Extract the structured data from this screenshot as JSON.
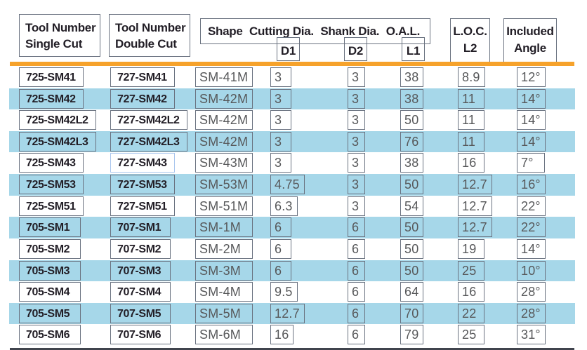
{
  "colors": {
    "stripe": "#a6d7e9",
    "header_rule_orange": "#f6a22b",
    "box_border": "#6a7280",
    "header_text": "#221e26",
    "value_text": "#57585a",
    "bottom_rule": "#40444d",
    "highlight_border": "#a9c6ee"
  },
  "header": {
    "tool_single": [
      "Tool Number",
      "Single Cut"
    ],
    "tool_double": [
      "Tool Number",
      "Double Cut"
    ],
    "shape": "Shape",
    "cutting_dia": "Cutting Dia.",
    "shank_dia": "Shank Dia.",
    "oal": "O.A.L.",
    "d1": "D1",
    "d2": "D2",
    "l1": "L1",
    "loc": [
      "L.O.C.",
      "L2"
    ],
    "included": [
      "Included",
      "Angle"
    ]
  },
  "rows": [
    {
      "single": "725-SM41",
      "double": "727-SM41",
      "shape": "SM-41M",
      "d1": "3",
      "d2": "3",
      "l1": "38",
      "l2": "8.9",
      "angle": "12°"
    },
    {
      "single": "725-SM42",
      "double": "727-SM42",
      "shape": "SM-42M",
      "d1": "3",
      "d2": "3",
      "l1": "38",
      "l2": "11",
      "angle": "14°"
    },
    {
      "single": "725-SM42L2",
      "double": "727-SM42L2",
      "shape": "SM-42M",
      "d1": "3",
      "d2": "3",
      "l1": "50",
      "l2": "11",
      "angle": "14°"
    },
    {
      "single": "725-SM42L3",
      "double": "727-SM42L3",
      "shape": "SM-42M",
      "d1": "3",
      "d2": "3",
      "l1": "76",
      "l2": "11",
      "angle": "14°"
    },
    {
      "single": "725-SM43",
      "double": "727-SM43",
      "shape": "SM-43M",
      "d1": "3",
      "d2": "3",
      "l1": "38",
      "l2": "16",
      "angle": "7°"
    },
    {
      "single": "725-SM53",
      "double": "727-SM53",
      "shape": "SM-53M",
      "d1": "4.75",
      "d2": "3",
      "l1": "50",
      "l2": "12.7",
      "angle": "16°"
    },
    {
      "single": "725-SM51",
      "double": "727-SM51",
      "shape": "SM-51M",
      "d1": "6.3",
      "d2": "3",
      "l1": "54",
      "l2": "12.7",
      "angle": "22°"
    },
    {
      "single": "705-SM1",
      "double": "707-SM1",
      "shape": "SM-1M",
      "d1": "6",
      "d2": "6",
      "l1": "50",
      "l2": "12.7",
      "angle": "22°"
    },
    {
      "single": "705-SM2",
      "double": "707-SM2",
      "shape": "SM-2M",
      "d1": "6",
      "d2": "6",
      "l1": "50",
      "l2": "19",
      "angle": "14°"
    },
    {
      "single": "705-SM3",
      "double": "707-SM3",
      "shape": "SM-3M",
      "d1": "6",
      "d2": "6",
      "l1": "50",
      "l2": "25",
      "angle": "10°"
    },
    {
      "single": "705-SM4",
      "double": "707-SM4",
      "shape": "SM-4M",
      "d1": "9.5",
      "d2": "6",
      "l1": "64",
      "l2": "16",
      "angle": "28°"
    },
    {
      "single": "705-SM5",
      "double": "707-SM5",
      "shape": "SM-5M",
      "d1": "12.7",
      "d2": "6",
      "l1": "70",
      "l2": "22",
      "angle": "28°"
    },
    {
      "single": "705-SM6",
      "double": "707-SM6",
      "shape": "SM-6M",
      "d1": "16",
      "d2": "6",
      "l1": "79",
      "l2": "25",
      "angle": "31°"
    }
  ],
  "annotations": {
    "highlighted_cell": {
      "row_index": 4,
      "column": "double"
    }
  }
}
